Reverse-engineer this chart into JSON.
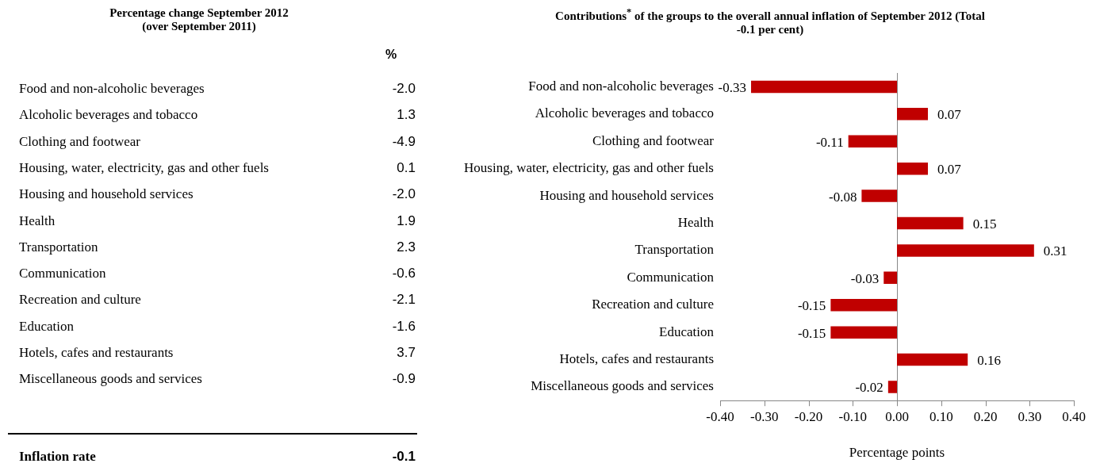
{
  "chart_data": [
    {
      "type": "other",
      "title": "Percentage change September 2012",
      "subtitle": "(over September 2011)",
      "categories": [
        "Food and non-alcoholic beverages",
        "Alcoholic beverages and tobacco",
        "Clothing and footwear",
        "Housing, water, electricity, gas and other fuels",
        "Housing and household services",
        "Health",
        "Transportation",
        "Communication",
        "Recreation and culture",
        "Education",
        "Hotels, cafes and restaurants",
        "Miscellaneous goods and services"
      ],
      "value_labels": [
        "-2.0",
        "1.3",
        "-4.9",
        "0.1",
        "-2.0",
        "1.9",
        "2.3",
        "-0.6",
        "-2.1",
        "-1.6",
        "3.7",
        "-0.9"
      ],
      "annotations": [
        "%",
        "Inflation rate",
        "-0.1"
      ]
    },
    {
      "type": "bar",
      "orientation": "horizontal",
      "title": "Contributions$^{*}$ of the groups to the overall annual inflation of September 2012 (Total -0.1 per cent)",
      "xlabel": "Percentage points",
      "categories": [
        "Food and non-alcoholic beverages",
        "Alcoholic beverages and tobacco",
        "Clothing and footwear",
        "Housing, water, electricity, gas and other fuels",
        "Housing and household services",
        "Health",
        "Transportation",
        "Communication",
        "Recreation and culture",
        "Education",
        "Hotels, cafes and restaurants",
        "Miscellaneous goods and services"
      ],
      "values": [
        -0.33,
        0.07,
        -0.11,
        0.07,
        -0.08,
        0.15,
        0.31,
        -0.03,
        -0.15,
        -0.15,
        0.16,
        -0.02
      ],
      "color": "#c00000",
      "data_labels": true,
      "legend": false,
      "xlim": [
        -0.4,
        0.4
      ],
      "xticks": [
        {
          "value": -0.4,
          "label": "-0.40"
        },
        {
          "value": -0.3,
          "label": "-0.30"
        },
        {
          "value": -0.2,
          "label": "-0.20"
        },
        {
          "value": -0.1,
          "label": "-0.10"
        },
        {
          "value": 0,
          "label": "0.00"
        },
        {
          "value": 0.1,
          "label": "0.10"
        },
        {
          "value": 0.2,
          "label": "0.20"
        },
        {
          "value": 0.3,
          "label": "0.30"
        },
        {
          "value": 0.4,
          "label": "0.40"
        }
      ]
    }
  ]
}
